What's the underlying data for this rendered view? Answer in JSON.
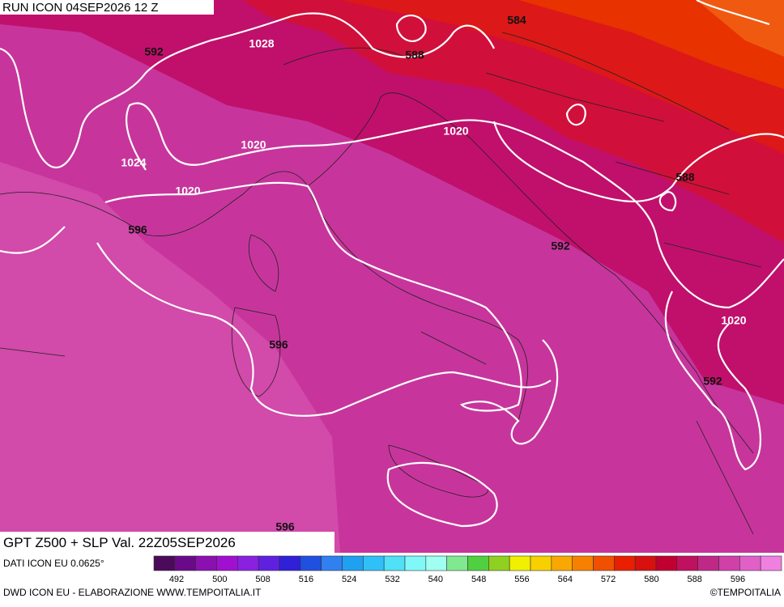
{
  "header": {
    "run": "RUN ICON 04SEP2026 12 Z"
  },
  "map": {
    "contour_labels": [
      "584",
      "592",
      "1028",
      "588",
      "1020",
      "1020",
      "1024",
      "1020",
      "588",
      "596",
      "592",
      "1020",
      "596",
      "592",
      "596"
    ]
  },
  "product": "GPT Z500 + SLP Val. 22Z05SEP2026",
  "data_source": "DATI ICON EU 0.0625°",
  "credit": "DWD ICON EU - ELABORAZIONE WWW.TEMPOITALIA.IT",
  "copyright": "©TEMPOITALIA",
  "colorbar": {
    "colors": [
      "#4b0a5a",
      "#6a0a8a",
      "#8a10b0",
      "#a010d0",
      "#8a20e0",
      "#6020e0",
      "#3020d8",
      "#2050e0",
      "#3080f0",
      "#20a0f0",
      "#30c0f8",
      "#50e0f8",
      "#80f8f8",
      "#a0fff0",
      "#80e890",
      "#50d040",
      "#90d020",
      "#f0f000",
      "#f8d000",
      "#f8a800",
      "#f88000",
      "#f05000",
      "#e82000",
      "#d81010",
      "#c00030",
      "#c01060",
      "#c02888",
      "#d040a8",
      "#e060c8",
      "#f080e0"
    ],
    "ticks": [
      492,
      500,
      508,
      516,
      524,
      532,
      540,
      548,
      556,
      564,
      572,
      580,
      588,
      596
    ]
  }
}
